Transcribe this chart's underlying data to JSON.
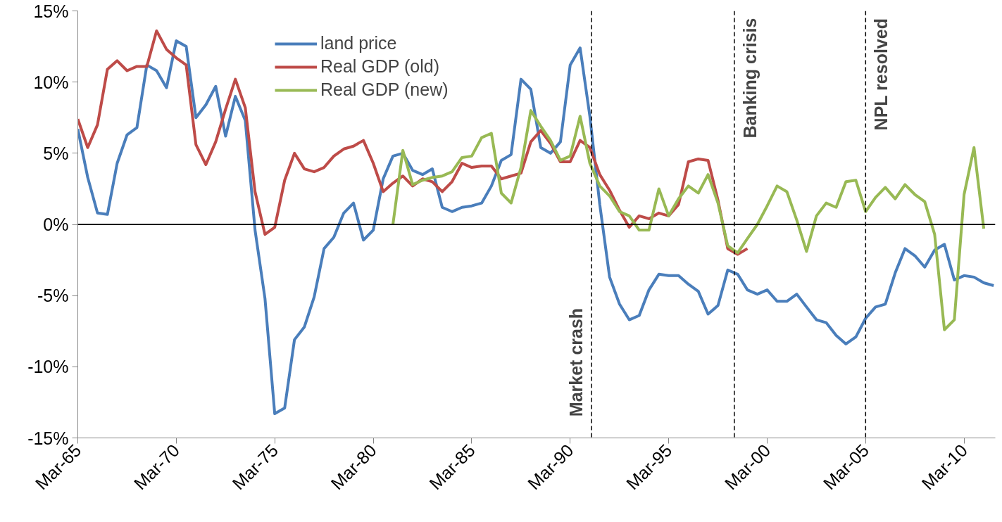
{
  "chart_data": {
    "type": "line",
    "series": [
      {
        "name": "land price",
        "color": "#4a7ebb",
        "x": [
          "1965-03",
          "1965-09",
          "1966-03",
          "1966-09",
          "1967-03",
          "1967-09",
          "1968-03",
          "1968-09",
          "1969-03",
          "1969-09",
          "1970-03",
          "1970-09",
          "1971-03",
          "1971-09",
          "1972-03",
          "1972-09",
          "1973-03",
          "1973-09",
          "1974-03",
          "1974-09",
          "1975-03",
          "1975-09",
          "1976-03",
          "1976-09",
          "1977-03",
          "1977-09",
          "1978-03",
          "1978-09",
          "1979-03",
          "1979-09",
          "1980-03",
          "1980-09",
          "1981-03",
          "1981-09",
          "1982-03",
          "1982-09",
          "1983-03",
          "1983-09",
          "1984-03",
          "1984-09",
          "1985-03",
          "1985-09",
          "1986-03",
          "1986-09",
          "1987-03",
          "1987-09",
          "1988-03",
          "1988-09",
          "1989-03",
          "1989-09",
          "1990-03",
          "1990-09",
          "1991-03",
          "1991-09",
          "1992-03",
          "1992-09",
          "1993-03",
          "1993-09",
          "1994-03",
          "1994-09",
          "1995-03",
          "1995-09",
          "1996-03",
          "1996-09",
          "1997-03",
          "1997-09",
          "1998-03",
          "1998-09",
          "1999-03",
          "1999-09",
          "2000-03",
          "2000-09",
          "2001-03",
          "2001-09",
          "2002-03",
          "2002-09",
          "2003-03",
          "2003-09",
          "2004-03",
          "2004-09",
          "2005-03",
          "2005-09",
          "2006-03",
          "2006-09",
          "2007-03",
          "2007-09",
          "2008-03",
          "2008-09",
          "2009-03",
          "2009-09",
          "2010-03",
          "2010-09",
          "2011-03",
          "2011-09"
        ],
        "values": [
          6.7,
          3.3,
          0.8,
          0.7,
          4.3,
          6.3,
          6.8,
          11.2,
          10.8,
          9.6,
          12.9,
          12.5,
          7.5,
          8.4,
          9.7,
          6.2,
          9.0,
          7.3,
          -0.4,
          -5.2,
          -13.3,
          -12.9,
          -8.1,
          -7.2,
          -5.1,
          -1.7,
          -0.9,
          0.8,
          1.5,
          -1.1,
          -0.4,
          3.2,
          4.8,
          5.0,
          3.8,
          3.5,
          3.9,
          1.2,
          0.9,
          1.2,
          1.3,
          1.5,
          2.7,
          4.5,
          4.9,
          10.2,
          9.5,
          5.4,
          5.0,
          5.8,
          11.2,
          12.4,
          7.6,
          1.4,
          -3.7,
          -5.6,
          -6.7,
          -6.4,
          -4.6,
          -3.5,
          -3.6,
          -3.6,
          -4.2,
          -4.7,
          -6.3,
          -5.7,
          -3.2,
          -3.5,
          -4.6,
          -4.9,
          -4.6,
          -5.4,
          -5.4,
          -4.9,
          -5.8,
          -6.7,
          -6.9,
          -7.8,
          -8.4,
          -7.9,
          -6.6,
          -5.8,
          -5.6,
          -3.4,
          -1.7,
          -2.2,
          -3.0,
          -1.8,
          -1.4,
          -3.9,
          -3.6,
          -3.7,
          -4.1,
          -4.3
        ]
      },
      {
        "name": "Real GDP (old)",
        "color": "#be4b48",
        "x": [
          "1965-03",
          "1965-09",
          "1966-03",
          "1966-09",
          "1967-03",
          "1967-09",
          "1968-03",
          "1968-09",
          "1969-03",
          "1969-09",
          "1970-03",
          "1970-09",
          "1971-03",
          "1971-09",
          "1972-03",
          "1972-09",
          "1973-03",
          "1973-09",
          "1974-03",
          "1974-09",
          "1975-03",
          "1975-09",
          "1976-03",
          "1976-09",
          "1977-03",
          "1977-09",
          "1978-03",
          "1978-09",
          "1979-03",
          "1979-09",
          "1980-03",
          "1980-09",
          "1981-03",
          "1981-09",
          "1982-03",
          "1982-09",
          "1983-03",
          "1983-09",
          "1984-03",
          "1984-09",
          "1985-03",
          "1985-09",
          "1986-03",
          "1986-09",
          "1987-03",
          "1987-09",
          "1988-03",
          "1988-09",
          "1989-03",
          "1989-09",
          "1990-03",
          "1990-09",
          "1991-03",
          "1991-09",
          "1992-03",
          "1992-09",
          "1993-03",
          "1993-09",
          "1994-03",
          "1994-09",
          "1995-03",
          "1995-09",
          "1996-03",
          "1996-09",
          "1997-03",
          "1997-09",
          "1998-03",
          "1998-09",
          "1999-03"
        ],
        "values": [
          7.4,
          5.4,
          7.0,
          10.9,
          11.5,
          10.8,
          11.1,
          11.1,
          13.6,
          12.3,
          11.7,
          11.2,
          5.6,
          4.2,
          5.8,
          8.1,
          10.2,
          8.2,
          2.3,
          -0.7,
          -0.2,
          3.1,
          5.0,
          3.9,
          3.7,
          4.0,
          4.8,
          5.3,
          5.5,
          5.9,
          4.3,
          2.3,
          2.9,
          3.4,
          2.7,
          3.2,
          3.0,
          2.3,
          3.0,
          4.3,
          4.0,
          4.1,
          4.1,
          3.2,
          3.4,
          3.6,
          5.8,
          6.6,
          5.7,
          4.4,
          4.4,
          5.9,
          5.4,
          3.5,
          2.4,
          1.0,
          -0.2,
          0.6,
          0.4,
          0.8,
          0.6,
          1.4,
          4.4,
          4.6,
          4.5,
          1.7,
          -1.7,
          -2.1,
          -1.7
        ]
      },
      {
        "name": "Real GDP (new)",
        "color": "#98b954",
        "x": [
          "1981-03",
          "1981-09",
          "1982-03",
          "1982-09",
          "1983-03",
          "1983-09",
          "1984-03",
          "1984-09",
          "1985-03",
          "1985-09",
          "1986-03",
          "1986-09",
          "1987-03",
          "1987-09",
          "1988-03",
          "1988-09",
          "1989-03",
          "1989-09",
          "1990-03",
          "1990-09",
          "1991-03",
          "1991-09",
          "1992-03",
          "1992-09",
          "1993-03",
          "1993-09",
          "1994-03",
          "1994-09",
          "1995-03",
          "1995-09",
          "1996-03",
          "1996-09",
          "1997-03",
          "1997-09",
          "1998-03",
          "1998-09",
          "1999-03",
          "1999-09",
          "2000-03",
          "2000-09",
          "2001-03",
          "2001-09",
          "2002-03",
          "2002-09",
          "2003-03",
          "2003-09",
          "2004-03",
          "2004-09",
          "2005-03",
          "2005-09",
          "2006-03",
          "2006-09",
          "2007-03",
          "2007-09",
          "2008-03",
          "2008-09",
          "2009-03",
          "2009-09",
          "2010-03",
          "2010-09",
          "2011-03"
        ],
        "values": [
          0.0,
          5.2,
          2.8,
          3.1,
          3.3,
          3.4,
          3.7,
          4.7,
          4.8,
          6.1,
          6.4,
          2.2,
          1.5,
          4.0,
          8.0,
          6.9,
          5.9,
          4.5,
          4.8,
          7.6,
          4.3,
          2.7,
          2.0,
          0.9,
          0.6,
          -0.4,
          -0.4,
          2.5,
          0.6,
          1.8,
          2.7,
          2.2,
          3.5,
          1.5,
          -1.5,
          -2.0,
          -1.0,
          0.0,
          1.3,
          2.7,
          2.3,
          0.3,
          -1.9,
          0.6,
          1.5,
          1.2,
          3.0,
          3.1,
          0.9,
          1.9,
          2.6,
          1.8,
          2.8,
          2.1,
          1.6,
          -0.7,
          -7.4,
          -6.7,
          2.1,
          5.4,
          -0.3
        ]
      }
    ],
    "xlim": [
      "1965-03",
      "2011-10"
    ],
    "xticks": [
      {
        "value": "1965-03",
        "label": "Mar-65"
      },
      {
        "value": "1970-03",
        "label": "Mar-70"
      },
      {
        "value": "1975-03",
        "label": "Mar-75"
      },
      {
        "value": "1980-03",
        "label": "Mar-80"
      },
      {
        "value": "1985-03",
        "label": "Mar-85"
      },
      {
        "value": "1990-03",
        "label": "Mar-90"
      },
      {
        "value": "1995-03",
        "label": "Mar-95"
      },
      {
        "value": "2000-03",
        "label": "Mar-00"
      },
      {
        "value": "2005-03",
        "label": "Mar-05"
      },
      {
        "value": "2010-03",
        "label": "Mar-10"
      }
    ],
    "ylim": [
      -15,
      15
    ],
    "yticks": [
      {
        "value": -15,
        "label": "-15%"
      },
      {
        "value": -10,
        "label": "-10%"
      },
      {
        "value": -5,
        "label": "-5%"
      },
      {
        "value": 0,
        "label": "0%"
      },
      {
        "value": 5,
        "label": "5%"
      },
      {
        "value": 10,
        "label": "10%"
      },
      {
        "value": 15,
        "label": "15%"
      }
    ],
    "ref_lines": [
      {
        "axis": "y",
        "value": 0,
        "color": "#000000",
        "line_style": "solid"
      },
      {
        "axis": "x",
        "value": "1991-04",
        "label": "Market crash",
        "color": "#000000",
        "line_style": "dashed"
      },
      {
        "axis": "x",
        "value": "1998-07",
        "label": "Banking crisis",
        "color": "#000000",
        "line_style": "dashed"
      },
      {
        "axis": "x",
        "value": "2005-03",
        "label": "NPL resolved",
        "color": "#000000",
        "line_style": "dashed"
      }
    ],
    "grid": false,
    "legend": "top",
    "marker": "none",
    "line_style": "solid"
  }
}
